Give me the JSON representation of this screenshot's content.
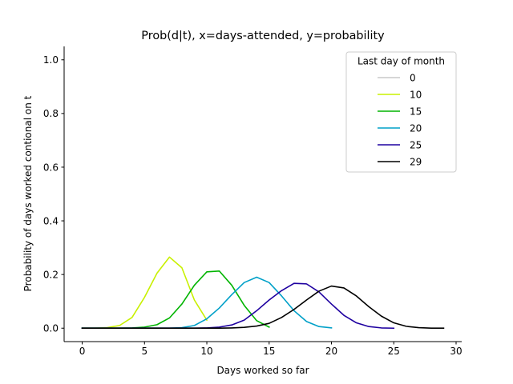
{
  "chart_data": {
    "type": "line",
    "title": "Prob(d|t), x=days-attended, y=probability",
    "xlabel": "Days worked so far",
    "ylabel": "Probability of days worked contional on t",
    "xlim": [
      -1.45,
      30.45
    ],
    "ylim": [
      -0.05,
      1.05
    ],
    "xticks": [
      0,
      5,
      10,
      15,
      20,
      25,
      30
    ],
    "yticks": [
      0.0,
      0.2,
      0.4,
      0.6,
      0.8,
      1.0
    ],
    "xtick_labels": [
      "0",
      "5",
      "10",
      "15",
      "20",
      "25",
      "30"
    ],
    "ytick_labels": [
      "0.0",
      "0.2",
      "0.4",
      "0.6",
      "0.8",
      "1.0"
    ],
    "legend": {
      "title": "Last day of month",
      "placement": "top-right"
    },
    "series": [
      {
        "name": "0",
        "color": "#c8c8c8",
        "x": [
          0
        ],
        "y": [
          0.0
        ]
      },
      {
        "name": "10",
        "color": "#c8f000",
        "x": [
          0,
          1,
          2,
          3,
          4,
          5,
          6,
          7,
          8,
          9,
          10
        ],
        "y": [
          0.0,
          0.0,
          0.002,
          0.01,
          0.04,
          0.115,
          0.205,
          0.265,
          0.225,
          0.105,
          0.03
        ]
      },
      {
        "name": "15",
        "color": "#00b400",
        "x": [
          0,
          1,
          2,
          3,
          4,
          5,
          6,
          7,
          8,
          9,
          10,
          11,
          12,
          13,
          14,
          15
        ],
        "y": [
          0.0,
          0.0,
          0.0,
          0.0,
          0.001,
          0.004,
          0.013,
          0.038,
          0.09,
          0.16,
          0.21,
          0.213,
          0.16,
          0.085,
          0.028,
          0.004
        ]
      },
      {
        "name": "20",
        "color": "#00a0c8",
        "x": [
          0,
          1,
          2,
          3,
          4,
          5,
          6,
          7,
          8,
          9,
          10,
          11,
          12,
          13,
          14,
          15,
          16,
          17,
          18,
          19,
          20
        ],
        "y": [
          0.0,
          0.0,
          0.0,
          0.0,
          0.0,
          0.0,
          0.0,
          0.0,
          0.002,
          0.01,
          0.035,
          0.075,
          0.125,
          0.17,
          0.19,
          0.17,
          0.12,
          0.065,
          0.025,
          0.006,
          0.001
        ]
      },
      {
        "name": "25",
        "color": "#1e00a0",
        "x": [
          0,
          1,
          2,
          3,
          4,
          5,
          6,
          7,
          8,
          9,
          10,
          11,
          12,
          13,
          14,
          15,
          16,
          17,
          18,
          19,
          20,
          21,
          22,
          23,
          24,
          25
        ],
        "y": [
          0.0,
          0.0,
          0.0,
          0.0,
          0.0,
          0.0,
          0.0,
          0.0,
          0.0,
          0.0,
          0.001,
          0.004,
          0.012,
          0.03,
          0.065,
          0.105,
          0.14,
          0.167,
          0.165,
          0.135,
          0.09,
          0.048,
          0.02,
          0.006,
          0.001,
          0.0
        ]
      },
      {
        "name": "29",
        "color": "#000000",
        "x": [
          0,
          1,
          2,
          3,
          4,
          5,
          6,
          7,
          8,
          9,
          10,
          11,
          12,
          13,
          14,
          15,
          16,
          17,
          18,
          19,
          20,
          21,
          22,
          23,
          24,
          25,
          26,
          27,
          28,
          29
        ],
        "y": [
          0.0,
          0.0,
          0.0,
          0.0,
          0.0,
          0.0,
          0.0,
          0.0,
          0.0,
          0.0,
          0.0,
          0.0,
          0.001,
          0.003,
          0.008,
          0.018,
          0.04,
          0.07,
          0.105,
          0.138,
          0.157,
          0.15,
          0.12,
          0.08,
          0.045,
          0.02,
          0.007,
          0.002,
          0.0,
          0.0
        ]
      }
    ]
  }
}
